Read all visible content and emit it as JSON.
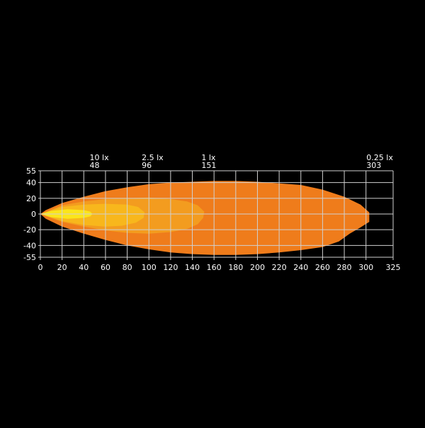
{
  "chart_data": {
    "type": "area",
    "title": "",
    "xlabel": "",
    "ylabel": "",
    "xlim": [
      0,
      325
    ],
    "ylim": [
      -55,
      55
    ],
    "x_ticks": [
      0,
      20,
      40,
      60,
      80,
      100,
      120,
      140,
      160,
      180,
      200,
      220,
      240,
      260,
      280,
      300,
      325
    ],
    "y_ticks": [
      55,
      40,
      20,
      0,
      -20,
      -40,
      -55
    ],
    "grid": true,
    "annotations": [
      {
        "label": "10 lx",
        "value": "48",
        "x": 48
      },
      {
        "label": "2.5 lx",
        "value": "96",
        "x": 96
      },
      {
        "label": "1 lx",
        "value": "151",
        "x": 151
      },
      {
        "label": "0.25 lx",
        "value": "303",
        "x": 303
      }
    ],
    "series": [
      {
        "level": "0.25 lx",
        "color": "#EF7C1B",
        "outline": [
          [
            0,
            0
          ],
          [
            5,
            5
          ],
          [
            20,
            14
          ],
          [
            40,
            22
          ],
          [
            60,
            29
          ],
          [
            80,
            34
          ],
          [
            100,
            38
          ],
          [
            120,
            40
          ],
          [
            140,
            41
          ],
          [
            160,
            42
          ],
          [
            180,
            42
          ],
          [
            200,
            41
          ],
          [
            220,
            39
          ],
          [
            240,
            37
          ],
          [
            260,
            31
          ],
          [
            280,
            22
          ],
          [
            295,
            12
          ],
          [
            303,
            2
          ],
          [
            303,
            -10
          ],
          [
            295,
            -17
          ],
          [
            285,
            -25
          ],
          [
            275,
            -35
          ],
          [
            260,
            -42
          ],
          [
            240,
            -46
          ],
          [
            220,
            -49
          ],
          [
            200,
            -51
          ],
          [
            180,
            -52
          ],
          [
            160,
            -52
          ],
          [
            140,
            -51
          ],
          [
            120,
            -49
          ],
          [
            100,
            -45
          ],
          [
            80,
            -40
          ],
          [
            60,
            -33
          ],
          [
            40,
            -25
          ],
          [
            20,
            -16
          ],
          [
            5,
            -6
          ]
        ]
      },
      {
        "level": "1 lx",
        "color": "#F39C1F",
        "outline": [
          [
            0,
            0
          ],
          [
            20,
            11
          ],
          [
            40,
            16
          ],
          [
            60,
            19
          ],
          [
            80,
            20
          ],
          [
            100,
            21
          ],
          [
            120,
            19
          ],
          [
            135,
            16
          ],
          [
            145,
            11
          ],
          [
            151,
            3
          ],
          [
            150,
            -5
          ],
          [
            145,
            -13
          ],
          [
            135,
            -19
          ],
          [
            120,
            -23
          ],
          [
            100,
            -25
          ],
          [
            80,
            -24
          ],
          [
            60,
            -21
          ],
          [
            40,
            -16
          ],
          [
            20,
            -10
          ]
        ]
      },
      {
        "level": "2.5 lx",
        "color": "#F8B71C",
        "outline": [
          [
            0,
            0
          ],
          [
            20,
            9
          ],
          [
            40,
            12
          ],
          [
            60,
            13
          ],
          [
            80,
            12
          ],
          [
            90,
            9
          ],
          [
            96,
            2
          ],
          [
            95,
            -5
          ],
          [
            88,
            -11
          ],
          [
            75,
            -15
          ],
          [
            60,
            -16
          ],
          [
            40,
            -14
          ],
          [
            20,
            -9
          ]
        ]
      },
      {
        "level": "10 lx",
        "color": "#FBE51B",
        "outline": [
          [
            0,
            0
          ],
          [
            10,
            4
          ],
          [
            25,
            6
          ],
          [
            40,
            5
          ],
          [
            46,
            3
          ],
          [
            48,
            0
          ],
          [
            46,
            -3
          ],
          [
            40,
            -5
          ],
          [
            25,
            -6
          ],
          [
            10,
            -4
          ]
        ]
      }
    ]
  }
}
